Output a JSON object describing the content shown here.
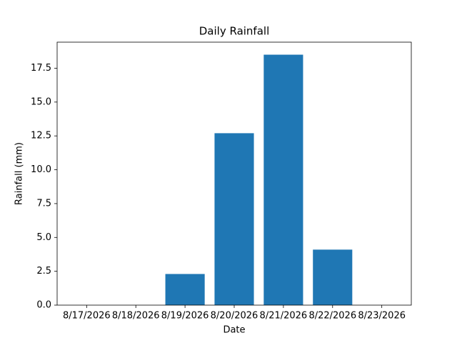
{
  "chart_data": {
    "type": "bar",
    "title": "Daily Rainfall",
    "x_label": "Date",
    "y_label": "Rainfall (mm)",
    "categories": [
      "8/17/2026",
      "8/18/2026",
      "8/19/2026",
      "8/20/2026",
      "8/21/2026",
      "8/22/2026",
      "8/23/2026"
    ],
    "values": [
      0,
      0,
      2.3,
      12.7,
      18.5,
      4.1,
      0
    ],
    "color": "#1f77b4",
    "ylim": [
      0,
      19.425
    ],
    "yticks": [
      {
        "value": 0,
        "label": "0.0"
      },
      2.5,
      {
        "value": 5,
        "label": "5.0"
      },
      7.5,
      {
        "value": 10,
        "label": "10.0"
      },
      12.5,
      {
        "value": 15,
        "label": "15.0"
      },
      17.5
    ],
    "grid": false
  }
}
